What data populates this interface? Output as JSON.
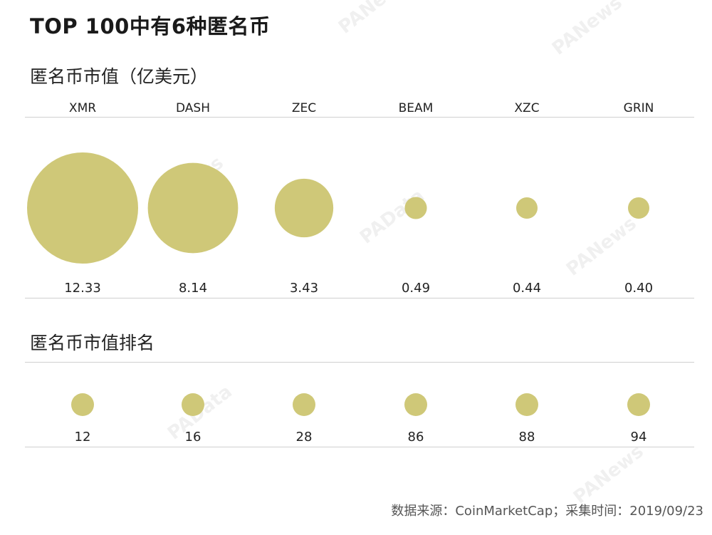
{
  "title": "TOP 100中有6种匿名币",
  "sections": {
    "market_cap_title": "匿名币市值（亿美元）",
    "rank_title": "匿名币市值排名"
  },
  "source": "数据来源：CoinMarketCap；采集时间：2019/09/23",
  "colors": {
    "bubble": "#cfc878",
    "rule": "#d0d0d0"
  },
  "watermarks": [
    "PANews",
    "PANews",
    "PANews",
    "PAData",
    "PAData",
    "PANews",
    "PANews"
  ],
  "chart_data": [
    {
      "type": "bubble",
      "title": "匿名币市值（亿美元）",
      "categories": [
        "XMR",
        "DASH",
        "ZEC",
        "BEAM",
        "XZC",
        "GRIN"
      ],
      "values": [
        12.33,
        8.14,
        3.43,
        0.49,
        0.44,
        0.4
      ],
      "value_labels": [
        "12.33",
        "8.14",
        "3.43",
        "0.49",
        "0.44",
        "0.40"
      ]
    },
    {
      "type": "bubble",
      "title": "匿名币市值排名",
      "categories": [
        "XMR",
        "DASH",
        "ZEC",
        "BEAM",
        "XZC",
        "GRIN"
      ],
      "values": [
        12,
        16,
        28,
        86,
        88,
        94
      ],
      "value_labels": [
        "12",
        "16",
        "28",
        "86",
        "88",
        "94"
      ]
    }
  ]
}
